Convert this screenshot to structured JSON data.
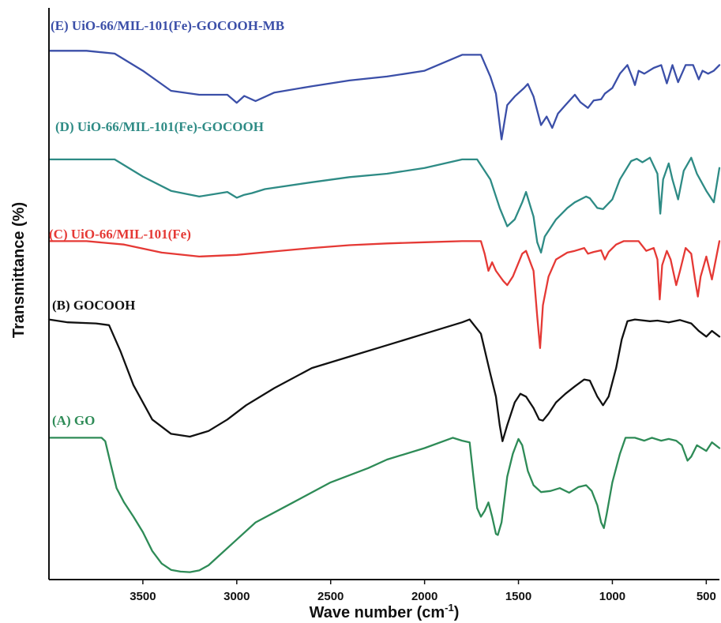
{
  "chart_data": {
    "type": "line",
    "xlabel": "Wave number (cm",
    "xlabel_sup": "-1",
    "xlabel_end": ")",
    "ylabel": "Transmittance (%)",
    "x_reversed": true,
    "xlim": [
      4000,
      430
    ],
    "x_ticks": [
      {
        "value": 3500,
        "label": "3500"
      },
      {
        "value": 3000,
        "label": "3000"
      },
      {
        "value": 2500,
        "label": "2500"
      },
      {
        "value": 2000,
        "label": "2000"
      },
      {
        "value": 1500,
        "label": "1500"
      },
      {
        "value": 1000,
        "label": "1000"
      },
      {
        "value": 500,
        "label": "500"
      }
    ],
    "y_units": "arbitrary (stacked spectra)",
    "ylim": [
      0,
      100
    ],
    "series": [
      {
        "name": "(E) UiO-66/MIL-101(Fe)-GOCOOH-MB",
        "color": "#3b4fa8",
        "points": [
          [
            4000,
            92.5
          ],
          [
            3800,
            92.5
          ],
          [
            3650,
            92
          ],
          [
            3500,
            89
          ],
          [
            3350,
            85.5
          ],
          [
            3200,
            84.8
          ],
          [
            3050,
            84.8
          ],
          [
            3000,
            83.4
          ],
          [
            2960,
            84.6
          ],
          [
            2900,
            83.7
          ],
          [
            2800,
            85.2
          ],
          [
            2600,
            86.3
          ],
          [
            2400,
            87.3
          ],
          [
            2200,
            88
          ],
          [
            2000,
            89
          ],
          [
            1800,
            91.8
          ],
          [
            1700,
            91.8
          ],
          [
            1650,
            88
          ],
          [
            1620,
            85
          ],
          [
            1590,
            77
          ],
          [
            1560,
            83
          ],
          [
            1520,
            84.5
          ],
          [
            1470,
            86
          ],
          [
            1450,
            86.7
          ],
          [
            1420,
            84.5
          ],
          [
            1380,
            79.5
          ],
          [
            1350,
            81
          ],
          [
            1320,
            79
          ],
          [
            1290,
            81.5
          ],
          [
            1250,
            83
          ],
          [
            1200,
            84.8
          ],
          [
            1170,
            83.5
          ],
          [
            1130,
            82.5
          ],
          [
            1100,
            83.8
          ],
          [
            1060,
            84
          ],
          [
            1040,
            85
          ],
          [
            1000,
            86
          ],
          [
            960,
            88.5
          ],
          [
            920,
            90
          ],
          [
            890,
            87.5
          ],
          [
            880,
            86.5
          ],
          [
            860,
            89
          ],
          [
            830,
            88.5
          ],
          [
            780,
            89.5
          ],
          [
            740,
            90
          ],
          [
            710,
            86.8
          ],
          [
            680,
            90
          ],
          [
            650,
            87
          ],
          [
            610,
            90
          ],
          [
            570,
            90
          ],
          [
            540,
            87.5
          ],
          [
            520,
            89
          ],
          [
            490,
            88.5
          ],
          [
            460,
            89
          ],
          [
            430,
            90
          ]
        ]
      },
      {
        "name": "(D) UiO-66/MIL-101(Fe)-GOCOOH",
        "color": "#2e8b85",
        "points": [
          [
            4000,
            73.5
          ],
          [
            3800,
            73.5
          ],
          [
            3650,
            73.5
          ],
          [
            3500,
            70.5
          ],
          [
            3350,
            68
          ],
          [
            3200,
            67
          ],
          [
            3050,
            67.8
          ],
          [
            3000,
            66.8
          ],
          [
            2960,
            67.3
          ],
          [
            2920,
            67.6
          ],
          [
            2850,
            68.3
          ],
          [
            2600,
            69.5
          ],
          [
            2400,
            70.4
          ],
          [
            2200,
            71
          ],
          [
            2000,
            72
          ],
          [
            1800,
            73.5
          ],
          [
            1720,
            73.5
          ],
          [
            1650,
            70
          ],
          [
            1600,
            65
          ],
          [
            1560,
            61.8
          ],
          [
            1520,
            63
          ],
          [
            1480,
            66
          ],
          [
            1460,
            67.8
          ],
          [
            1420,
            63.5
          ],
          [
            1400,
            59
          ],
          [
            1380,
            57.2
          ],
          [
            1360,
            60
          ],
          [
            1300,
            63
          ],
          [
            1240,
            65
          ],
          [
            1200,
            66
          ],
          [
            1140,
            67
          ],
          [
            1120,
            66.7
          ],
          [
            1080,
            65
          ],
          [
            1050,
            64.8
          ],
          [
            1000,
            66.5
          ],
          [
            960,
            70
          ],
          [
            900,
            73.2
          ],
          [
            870,
            73.6
          ],
          [
            840,
            73
          ],
          [
            800,
            73.8
          ],
          [
            760,
            71
          ],
          [
            745,
            64
          ],
          [
            730,
            70
          ],
          [
            700,
            72.8
          ],
          [
            680,
            70
          ],
          [
            650,
            66.5
          ],
          [
            620,
            71.5
          ],
          [
            580,
            73.8
          ],
          [
            550,
            71
          ],
          [
            500,
            68
          ],
          [
            460,
            66
          ],
          [
            430,
            72
          ]
        ]
      },
      {
        "name": "(C) UiO-66/MIL-101(Fe)",
        "color": "#e53935",
        "points": [
          [
            4000,
            59.2
          ],
          [
            3800,
            59.2
          ],
          [
            3600,
            58.6
          ],
          [
            3400,
            57.2
          ],
          [
            3200,
            56.5
          ],
          [
            3000,
            56.8
          ],
          [
            2800,
            57.4
          ],
          [
            2600,
            58
          ],
          [
            2400,
            58.5
          ],
          [
            2200,
            58.8
          ],
          [
            2000,
            59
          ],
          [
            1800,
            59.2
          ],
          [
            1700,
            59.2
          ],
          [
            1680,
            57
          ],
          [
            1660,
            54
          ],
          [
            1640,
            55.5
          ],
          [
            1620,
            54
          ],
          [
            1580,
            52.2
          ],
          [
            1560,
            51.5
          ],
          [
            1530,
            53
          ],
          [
            1480,
            57
          ],
          [
            1460,
            57.5
          ],
          [
            1420,
            54
          ],
          [
            1400,
            46
          ],
          [
            1385,
            40.5
          ],
          [
            1370,
            48
          ],
          [
            1340,
            53
          ],
          [
            1300,
            56
          ],
          [
            1240,
            57.2
          ],
          [
            1200,
            57.5
          ],
          [
            1150,
            58
          ],
          [
            1130,
            57
          ],
          [
            1100,
            57.3
          ],
          [
            1060,
            57.6
          ],
          [
            1040,
            56
          ],
          [
            1020,
            57.3
          ],
          [
            980,
            58.6
          ],
          [
            940,
            59.2
          ],
          [
            900,
            59.2
          ],
          [
            860,
            59.2
          ],
          [
            820,
            57.5
          ],
          [
            780,
            58
          ],
          [
            760,
            56
          ],
          [
            748,
            49
          ],
          [
            735,
            55
          ],
          [
            710,
            57.5
          ],
          [
            690,
            56
          ],
          [
            660,
            51.5
          ],
          [
            640,
            54
          ],
          [
            610,
            58
          ],
          [
            580,
            57
          ],
          [
            560,
            52.5
          ],
          [
            545,
            49.5
          ],
          [
            530,
            53
          ],
          [
            500,
            56.5
          ],
          [
            470,
            52.5
          ],
          [
            430,
            59.2
          ]
        ]
      },
      {
        "name": "(B) GOCOOH",
        "color": "#111111",
        "points": [
          [
            4000,
            45.5
          ],
          [
            3900,
            45
          ],
          [
            3750,
            44.8
          ],
          [
            3680,
            44.5
          ],
          [
            3620,
            40
          ],
          [
            3550,
            34
          ],
          [
            3450,
            28
          ],
          [
            3350,
            25.5
          ],
          [
            3250,
            25
          ],
          [
            3150,
            26
          ],
          [
            3050,
            28
          ],
          [
            2950,
            30.5
          ],
          [
            2800,
            33.5
          ],
          [
            2600,
            37
          ],
          [
            2400,
            39
          ],
          [
            2200,
            41
          ],
          [
            2000,
            43
          ],
          [
            1800,
            45
          ],
          [
            1760,
            45.5
          ],
          [
            1700,
            43
          ],
          [
            1650,
            36
          ],
          [
            1620,
            32
          ],
          [
            1600,
            27
          ],
          [
            1585,
            24.2
          ],
          [
            1560,
            27
          ],
          [
            1520,
            31
          ],
          [
            1490,
            32.5
          ],
          [
            1460,
            32
          ],
          [
            1420,
            30
          ],
          [
            1390,
            28
          ],
          [
            1370,
            27.8
          ],
          [
            1340,
            29
          ],
          [
            1300,
            31
          ],
          [
            1250,
            32.5
          ],
          [
            1200,
            33.8
          ],
          [
            1150,
            35
          ],
          [
            1120,
            34.8
          ],
          [
            1080,
            32
          ],
          [
            1050,
            30.5
          ],
          [
            1020,
            32
          ],
          [
            980,
            37
          ],
          [
            950,
            42
          ],
          [
            920,
            45.2
          ],
          [
            880,
            45.5
          ],
          [
            800,
            45.2
          ],
          [
            760,
            45.3
          ],
          [
            700,
            45
          ],
          [
            640,
            45.4
          ],
          [
            580,
            44.8
          ],
          [
            540,
            43.5
          ],
          [
            500,
            42.5
          ],
          [
            470,
            43.5
          ],
          [
            430,
            42.5
          ]
        ]
      },
      {
        "name": "(A) GO",
        "color": "#2e8b57",
        "points": [
          [
            4000,
            24.8
          ],
          [
            3850,
            24.8
          ],
          [
            3720,
            24.8
          ],
          [
            3700,
            24.2
          ],
          [
            3670,
            20
          ],
          [
            3640,
            16
          ],
          [
            3600,
            13.5
          ],
          [
            3550,
            11
          ],
          [
            3500,
            8.3
          ],
          [
            3450,
            5
          ],
          [
            3400,
            2.8
          ],
          [
            3350,
            1.7
          ],
          [
            3300,
            1.4
          ],
          [
            3250,
            1.3
          ],
          [
            3200,
            1.6
          ],
          [
            3150,
            2.5
          ],
          [
            3100,
            4
          ],
          [
            3000,
            7
          ],
          [
            2900,
            10
          ],
          [
            2700,
            13.5
          ],
          [
            2500,
            17
          ],
          [
            2300,
            19.5
          ],
          [
            2200,
            21
          ],
          [
            2000,
            23
          ],
          [
            1850,
            24.8
          ],
          [
            1800,
            24.3
          ],
          [
            1760,
            24
          ],
          [
            1740,
            18
          ],
          [
            1720,
            12.5
          ],
          [
            1700,
            11
          ],
          [
            1680,
            12
          ],
          [
            1660,
            13.5
          ],
          [
            1640,
            11
          ],
          [
            1620,
            8
          ],
          [
            1610,
            7.8
          ],
          [
            1590,
            10
          ],
          [
            1560,
            18
          ],
          [
            1530,
            22
          ],
          [
            1500,
            24.6
          ],
          [
            1480,
            23.5
          ],
          [
            1450,
            19
          ],
          [
            1420,
            16.5
          ],
          [
            1380,
            15.3
          ],
          [
            1330,
            15.5
          ],
          [
            1280,
            16
          ],
          [
            1230,
            15.2
          ],
          [
            1180,
            16.2
          ],
          [
            1140,
            16.5
          ],
          [
            1110,
            15.5
          ],
          [
            1080,
            13
          ],
          [
            1060,
            10
          ],
          [
            1045,
            9
          ],
          [
            1030,
            11.5
          ],
          [
            1000,
            17
          ],
          [
            960,
            22
          ],
          [
            930,
            24.8
          ],
          [
            880,
            24.8
          ],
          [
            830,
            24.3
          ],
          [
            790,
            24.8
          ],
          [
            740,
            24.3
          ],
          [
            700,
            24.6
          ],
          [
            660,
            24.3
          ],
          [
            630,
            23.5
          ],
          [
            600,
            20.8
          ],
          [
            580,
            21.5
          ],
          [
            550,
            23.5
          ],
          [
            500,
            22.5
          ],
          [
            470,
            24
          ],
          [
            430,
            23
          ]
        ]
      }
    ]
  }
}
